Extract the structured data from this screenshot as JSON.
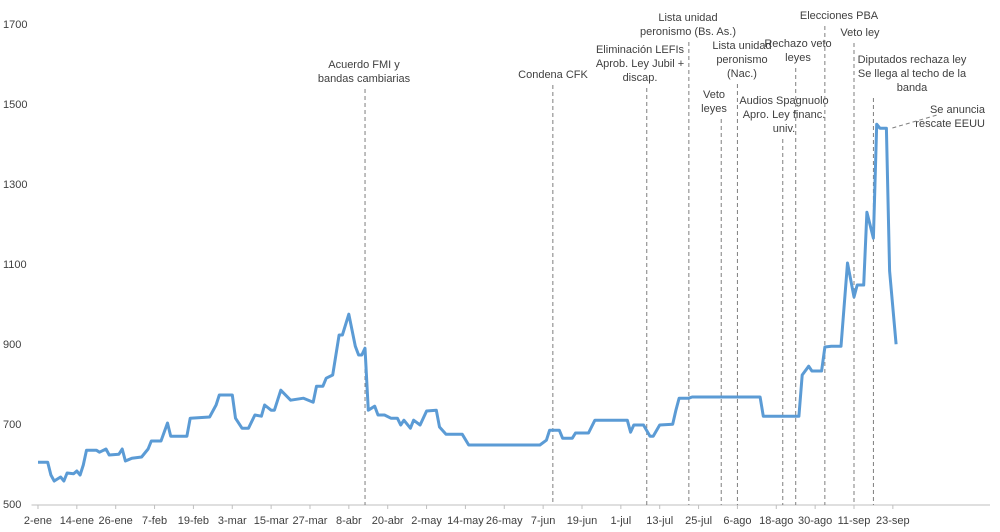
{
  "chart_data": {
    "type": "line",
    "x": [
      2,
      5,
      6,
      7,
      9,
      10,
      11,
      13,
      14,
      15,
      16,
      17,
      20,
      21,
      23,
      24,
      27,
      28,
      29,
      31,
      34,
      36,
      37,
      40,
      42,
      43,
      48,
      49,
      55,
      57,
      58,
      62,
      63,
      65,
      67,
      69,
      71,
      72,
      74,
      75,
      77,
      80,
      84,
      87,
      88,
      90,
      91,
      93,
      95,
      96,
      98,
      100,
      101,
      102,
      103,
      104,
      106,
      107,
      109,
      111,
      113,
      114,
      115,
      117,
      118,
      120,
      122,
      125,
      126,
      128,
      133,
      135,
      157,
      159,
      160,
      163,
      164,
      167,
      168,
      172,
      174,
      184,
      185,
      186,
      189,
      191,
      192,
      194,
      198,
      199,
      200,
      203,
      204,
      225,
      226,
      237,
      238,
      240,
      241,
      244,
      245,
      247,
      250,
      252,
      254,
      255,
      257,
      258,
      260,
      261,
      262,
      264,
      265,
      267
    ],
    "series": [
      {
        "color": "#5b9bd5",
        "values": [
          607,
          607,
          575,
          560,
          570,
          560,
          580,
          578,
          585,
          575,
          600,
          637,
          637,
          632,
          640,
          625,
          627,
          640,
          610,
          617,
          620,
          640,
          660,
          660,
          705,
          672,
          672,
          717,
          720,
          750,
          775,
          775,
          717,
          692,
          692,
          725,
          722,
          750,
          737,
          737,
          787,
          762,
          767,
          757,
          797,
          797,
          817,
          825,
          925,
          925,
          977,
          897,
          875,
          875,
          892,
          737,
          747,
          725,
          725,
          717,
          717,
          700,
          712,
          692,
          712,
          700,
          735,
          737,
          695,
          677,
          677,
          650,
          650,
          662,
          687,
          687,
          667,
          667,
          680,
          680,
          712,
          712,
          682,
          700,
          700,
          672,
          672,
          700,
          702,
          737,
          767,
          767,
          770,
          770,
          722,
          722,
          825,
          847,
          835,
          835,
          895,
          897,
          897,
          1105,
          1020,
          1050,
          1050,
          1232,
          1167,
          1452,
          1442,
          1442,
          1085,
          902
        ]
      }
    ],
    "xlim": [
      0,
      296
    ],
    "ylim": [
      500,
      1700
    ],
    "xticks": [
      {
        "value": 2,
        "label": "2-ene"
      },
      {
        "value": 14,
        "label": "14-ene"
      },
      {
        "value": 26,
        "label": "26-ene"
      },
      {
        "value": 38,
        "label": "7-feb"
      },
      {
        "value": 50,
        "label": "19-feb"
      },
      {
        "value": 62,
        "label": "3-mar"
      },
      {
        "value": 74,
        "label": "15-mar"
      },
      {
        "value": 86,
        "label": "27-mar"
      },
      {
        "value": 98,
        "label": "8-abr"
      },
      {
        "value": 110,
        "label": "20-abr"
      },
      {
        "value": 122,
        "label": "2-may"
      },
      {
        "value": 134,
        "label": "14-may"
      },
      {
        "value": 146,
        "label": "26-may"
      },
      {
        "value": 158,
        "label": "7-jun"
      },
      {
        "value": 170,
        "label": "19-jun"
      },
      {
        "value": 182,
        "label": "1-jul"
      },
      {
        "value": 194,
        "label": "13-jul"
      },
      {
        "value": 206,
        "label": "25-jul"
      },
      {
        "value": 218,
        "label": "6-ago"
      },
      {
        "value": 230,
        "label": "18-ago"
      },
      {
        "value": 242,
        "label": "30-ago"
      },
      {
        "value": 254,
        "label": "11-sep"
      },
      {
        "value": 266,
        "label": "23-sep"
      }
    ],
    "yticks": [
      500,
      700,
      900,
      1100,
      1300,
      1500,
      1700
    ],
    "annotations": [
      {
        "x": 103,
        "lines": [
          "Acuerdo FMI y",
          "bandas cambiarias"
        ]
      },
      {
        "x": 161,
        "lines": [
          "Condena CFK"
        ]
      },
      {
        "x": 190,
        "lines": [
          "Eliminación LEFIs",
          "Aprob. Ley Jubil +",
          "discap."
        ]
      },
      {
        "x": 203,
        "lines": [
          "Lista unidad",
          "peronismo (Bs. As.)"
        ]
      },
      {
        "x": 213,
        "lines": [
          "Veto",
          "leyes"
        ]
      },
      {
        "x": 218,
        "lines": [
          "Lista unidad",
          "peronismo",
          "(Nac.)"
        ]
      },
      {
        "x": 232,
        "lines": [
          "Audios Spagnuolo",
          "Apro. Ley financ.",
          "univ."
        ]
      },
      {
        "x": 236,
        "lines": [
          "Rechazo veto",
          "leyes"
        ]
      },
      {
        "x": 245,
        "lines": [
          "Elecciones PBA"
        ]
      },
      {
        "x": 254,
        "lines": [
          "Veto ley"
        ]
      },
      {
        "x": 260,
        "lines": [
          "Diputados rechaza ley",
          "Se llega al techo de la",
          "banda"
        ]
      },
      {
        "x": 264,
        "lines": [
          "Se anuncia",
          "rescate EEUU"
        ]
      }
    ]
  }
}
